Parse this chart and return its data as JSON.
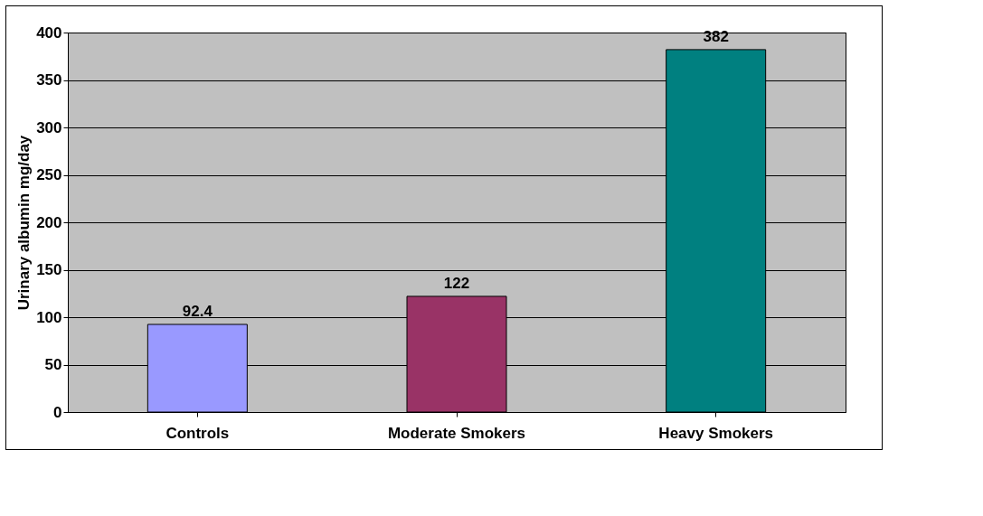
{
  "chart_data": {
    "type": "bar",
    "ylabel": "Urinary albumin mg/day",
    "categories": [
      "Controls",
      "Moderate Smokers",
      "Heavy Smokers"
    ],
    "values": [
      92.4,
      122,
      382
    ],
    "colors": [
      "#9999ff",
      "#993366",
      "#008080"
    ],
    "ylim": [
      0,
      400
    ],
    "yticks": [
      0,
      50,
      100,
      150,
      200,
      250,
      300,
      350,
      400
    ],
    "grid": "y",
    "data_labels": true
  }
}
